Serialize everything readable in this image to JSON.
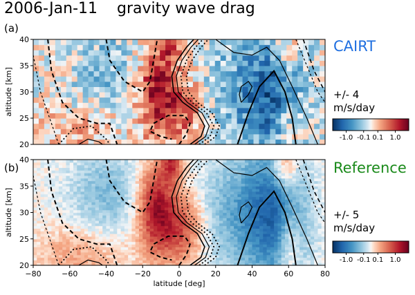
{
  "title": "2006-Jan-11",
  "subtitle": "gravity wave drag",
  "chart_data": [
    {
      "type": "heatmap",
      "panel_label": "(a)",
      "name": "CAIRT",
      "name_color": "#1f6fe0",
      "range_text": "+/- 4",
      "unit": "m/s/day",
      "ylabel": "altitude [km]",
      "xlim": [
        -80,
        80
      ],
      "ylim": [
        20,
        40
      ],
      "yticks": [
        20,
        25,
        30,
        35,
        40
      ],
      "xticks": [],
      "colorbar": {
        "ticks": [
          "-1.0",
          "-0.1",
          "0.1",
          "1.0"
        ],
        "tick_values": [
          -1.0,
          -0.1,
          0.1,
          1.0
        ],
        "scale": "symlog",
        "colormap": "RdBu_r"
      }
    },
    {
      "type": "heatmap",
      "panel_label": "(b)",
      "name": "Reference",
      "name_color": "#1a8a1a",
      "range_text": "+/- 5",
      "unit": "m/s/day",
      "ylabel": "altitude [km]",
      "xlabel": "latitude [deg]",
      "xlim": [
        -80,
        80
      ],
      "ylim": [
        20,
        40
      ],
      "yticks": [
        20,
        25,
        30,
        35,
        40
      ],
      "xticks": [
        -80,
        -60,
        -40,
        -20,
        0,
        20,
        40,
        60,
        80
      ],
      "colorbar": {
        "ticks": [
          "-1.0",
          "-0.1",
          "0.1",
          "1.0"
        ],
        "tick_values": [
          -1.0,
          -0.1,
          0.1,
          1.0
        ],
        "scale": "symlog",
        "colormap": "RdBu_r"
      }
    }
  ]
}
